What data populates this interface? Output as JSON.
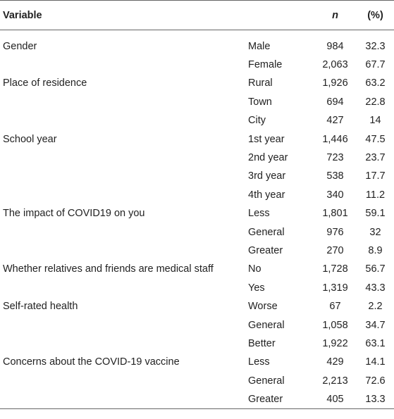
{
  "header": {
    "variable": "Variable",
    "n": "n",
    "pct": "(%)"
  },
  "rows": [
    {
      "variable": "Gender",
      "category": "Male",
      "n": "984",
      "pct": "32.3"
    },
    {
      "variable": "",
      "category": "Female",
      "n": "2,063",
      "pct": "67.7"
    },
    {
      "variable": "Place of residence",
      "category": "Rural",
      "n": "1,926",
      "pct": "63.2"
    },
    {
      "variable": "",
      "category": "Town",
      "n": "694",
      "pct": "22.8"
    },
    {
      "variable": "",
      "category": "City",
      "n": "427",
      "pct": "14"
    },
    {
      "variable": "School year",
      "category": "1st year",
      "n": "1,446",
      "pct": "47.5"
    },
    {
      "variable": "",
      "category": "2nd year",
      "n": "723",
      "pct": "23.7"
    },
    {
      "variable": "",
      "category": "3rd year",
      "n": "538",
      "pct": "17.7"
    },
    {
      "variable": "",
      "category": "4th year",
      "n": "340",
      "pct": "11.2"
    },
    {
      "variable": "The impact of COVID19 on you",
      "category": "Less",
      "n": "1,801",
      "pct": "59.1"
    },
    {
      "variable": "",
      "category": "General",
      "n": "976",
      "pct": "32"
    },
    {
      "variable": "",
      "category": "Greater",
      "n": "270",
      "pct": "8.9"
    },
    {
      "variable": "Whether relatives and friends are medical staff",
      "category": "No",
      "n": "1,728",
      "pct": "56.7"
    },
    {
      "variable": "",
      "category": "Yes",
      "n": "1,319",
      "pct": "43.3"
    },
    {
      "variable": "Self-rated health",
      "category": "Worse",
      "n": "67",
      "pct": "2.2"
    },
    {
      "variable": "",
      "category": "General",
      "n": "1,058",
      "pct": "34.7"
    },
    {
      "variable": "",
      "category": "Better",
      "n": "1,922",
      "pct": "63.1"
    },
    {
      "variable": "Concerns about the COVID-19 vaccine",
      "category": "Less",
      "n": "429",
      "pct": "14.1"
    },
    {
      "variable": "",
      "category": "General",
      "n": "2,213",
      "pct": "72.6"
    },
    {
      "variable": "",
      "category": "Greater",
      "n": "405",
      "pct": "13.3"
    }
  ]
}
